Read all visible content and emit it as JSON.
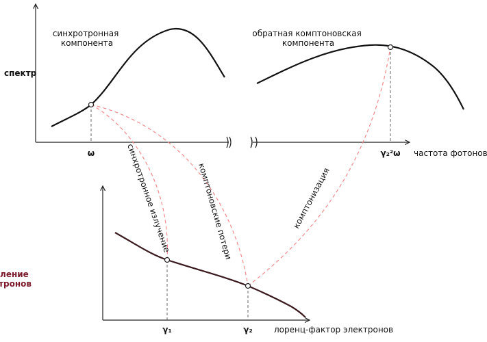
{
  "top_panel": {
    "y_label": "спектр",
    "synchrotron_label": [
      "синхротронная",
      "компонента"
    ],
    "compton_label": [
      "обратная комптоновская",
      "компонента"
    ],
    "x_label": "частота фотонов",
    "x_marks": [
      "ω",
      "γ₂²ω"
    ]
  },
  "arrows": {
    "synchrotron": "синхротронное излучение",
    "compton_losses": "комптоновские потери",
    "comptonization": "комптонизация"
  },
  "bottom_panel": {
    "y_label": [
      "распределение",
      "электронов"
    ],
    "x_label": "лоренц-фактор электронов",
    "x_marks": [
      "γ₁",
      "γ₂"
    ]
  }
}
